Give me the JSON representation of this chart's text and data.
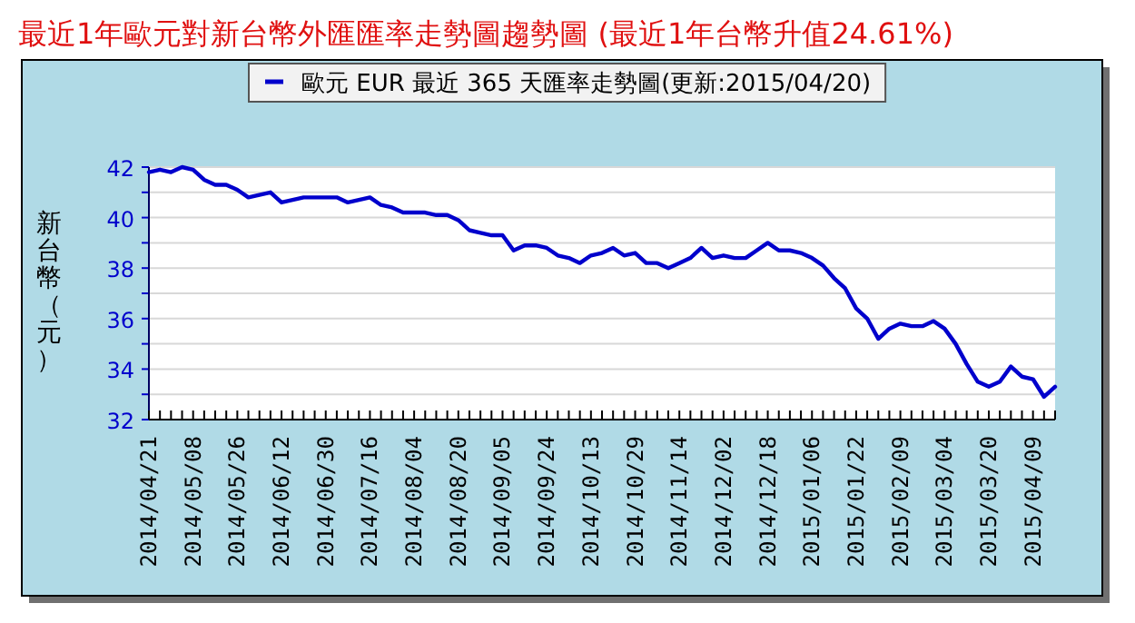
{
  "chart_data": {
    "type": "line",
    "title": "最近1年歐元對新台幣外匯匯率走勢圖趨勢圖 (最近1年台幣升值24.61%)",
    "ylabel": "新台幣（元）",
    "categories": [
      "2014/04/21",
      null,
      null,
      null,
      "2014/05/08",
      null,
      null,
      null,
      "2014/05/26",
      null,
      null,
      null,
      "2014/06/12",
      null,
      null,
      null,
      "2014/06/30",
      null,
      null,
      null,
      "2014/07/16",
      null,
      null,
      null,
      "2014/08/04",
      null,
      null,
      null,
      "2014/08/20",
      null,
      null,
      null,
      "2014/09/05",
      null,
      null,
      null,
      "2014/09/24",
      null,
      null,
      null,
      "2014/10/13",
      null,
      null,
      null,
      "2014/10/29",
      null,
      null,
      null,
      "2014/11/14",
      null,
      null,
      null,
      "2014/12/02",
      null,
      null,
      null,
      "2014/12/18",
      null,
      null,
      null,
      "2015/01/06",
      null,
      null,
      null,
      "2015/01/22",
      null,
      null,
      null,
      "2015/02/09",
      null,
      null,
      null,
      "2015/03/04",
      null,
      null,
      null,
      "2015/03/20",
      null,
      null,
      null,
      "2015/04/09",
      null,
      null
    ],
    "series": [
      {
        "name": "歐元 EUR 最近 365 天匯率走勢圖(更新:2015/04/20)",
        "color": "#0000cc",
        "values": [
          41.8,
          41.9,
          41.8,
          42.0,
          41.9,
          41.5,
          41.3,
          41.3,
          41.1,
          40.8,
          40.9,
          41.0,
          40.6,
          40.7,
          40.8,
          40.8,
          40.8,
          40.8,
          40.6,
          40.7,
          40.8,
          40.5,
          40.4,
          40.2,
          40.2,
          40.2,
          40.1,
          40.1,
          39.9,
          39.5,
          39.4,
          39.3,
          39.3,
          38.7,
          38.9,
          38.9,
          38.8,
          38.5,
          38.4,
          38.2,
          38.5,
          38.6,
          38.8,
          38.5,
          38.6,
          38.2,
          38.2,
          38.0,
          38.2,
          38.4,
          38.8,
          38.4,
          38.5,
          38.4,
          38.4,
          38.7,
          39.0,
          38.7,
          38.7,
          38.6,
          38.4,
          38.1,
          37.6,
          37.2,
          36.4,
          36.0,
          35.2,
          35.6,
          35.8,
          35.7,
          35.7,
          35.9,
          35.6,
          35.0,
          34.2,
          33.5,
          33.3,
          33.5,
          34.1,
          33.7,
          33.6,
          32.9,
          33.3
        ]
      }
    ],
    "ylim": [
      32,
      42
    ],
    "yticks": [
      32,
      {
        "value": 33,
        "label": null
      },
      34,
      {
        "value": 35,
        "label": null
      },
      36,
      {
        "value": 37,
        "label": null
      },
      38,
      {
        "value": 39,
        "label": null
      },
      40,
      {
        "value": 41,
        "label": null
      },
      42
    ],
    "grid": "y",
    "legend": "top"
  }
}
